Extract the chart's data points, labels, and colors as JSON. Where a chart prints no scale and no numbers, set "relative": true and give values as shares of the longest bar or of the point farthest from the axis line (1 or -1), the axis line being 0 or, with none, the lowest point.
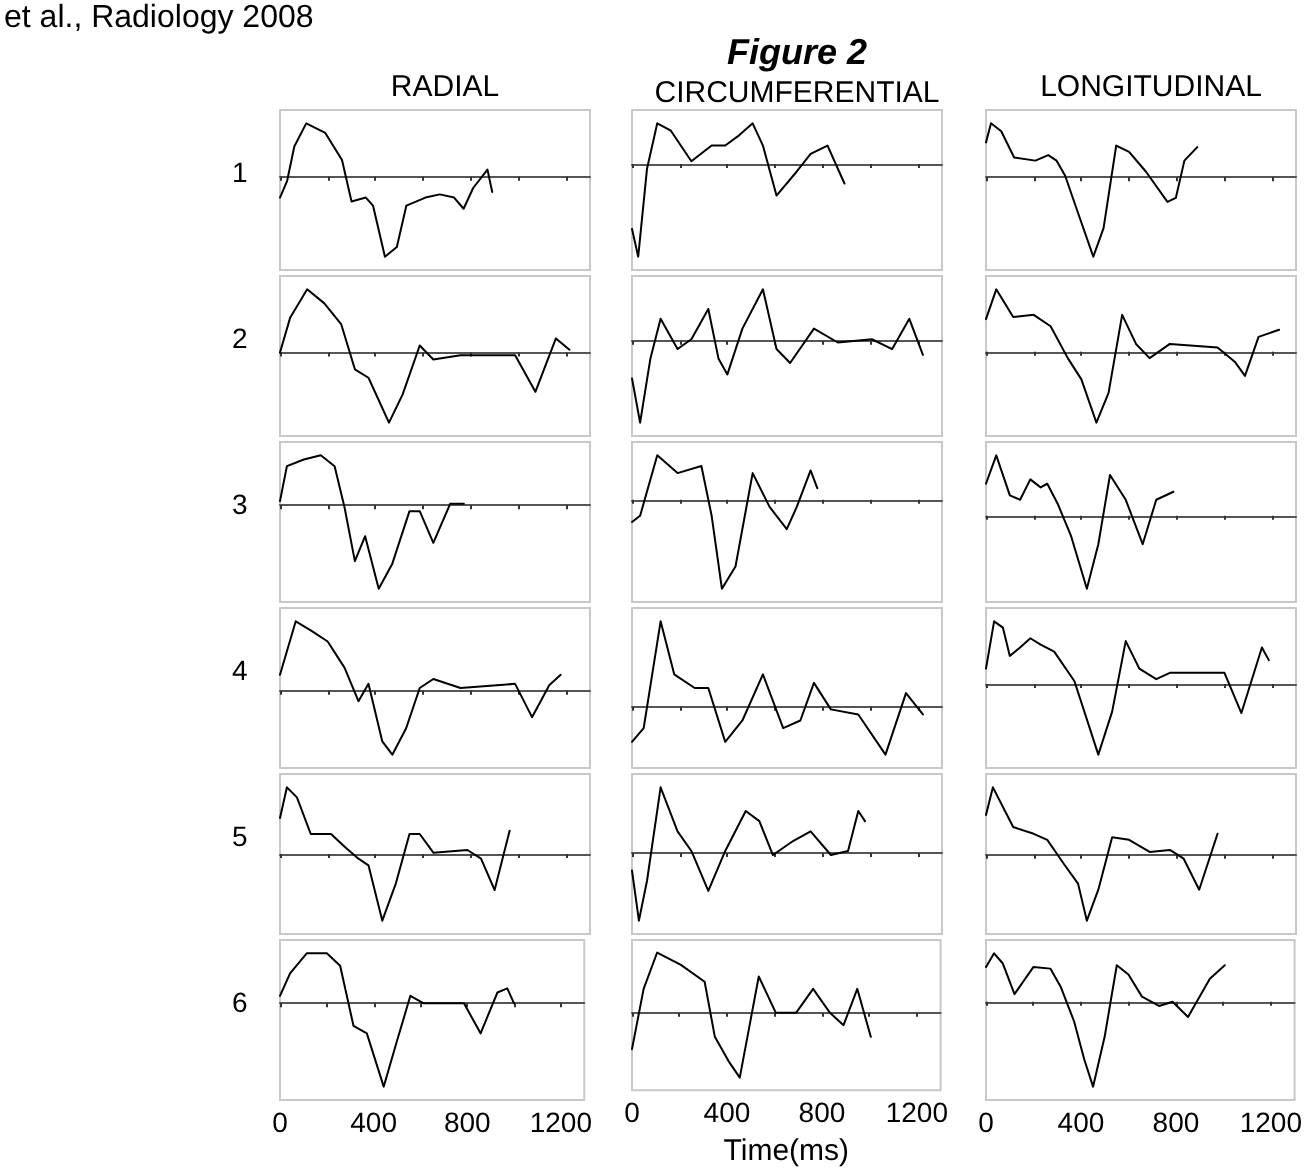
{
  "chart_data": [
    {
      "type": "line",
      "relative": true,
      "title": "RADIAL",
      "ylabel": "1",
      "annotations": [
        "et al., Radiology 2008"
      ],
      "xlim": [
        0,
        1300
      ],
      "xticks": [
        0,
        {
          "value": 200,
          "label": null
        },
        400,
        {
          "value": 600,
          "label": null
        },
        800,
        {
          "value": 1000,
          "label": null
        },
        1200
      ],
      "tick_labels": false,
      "x": [
        0,
        30,
        60,
        110,
        190,
        260,
        300,
        360,
        390,
        440,
        490,
        530,
        610,
        670,
        730,
        770,
        810,
        870,
        890
      ],
      "series": [
        {
          "color": "#000000",
          "values": [
            -0.26,
            -0.05,
            0.38,
            0.67,
            0.55,
            0.21,
            -0.31,
            -0.26,
            -0.36,
            -1,
            -0.88,
            -0.36,
            -0.26,
            -0.22,
            -0.26,
            -0.4,
            -0.14,
            0.09,
            -0.19
          ]
        }
      ]
    },
    {
      "type": "line",
      "relative": true,
      "title": "Figure 2",
      "subtitle": "CIRCUMFERENTIAL",
      "xlim": [
        0,
        1300
      ],
      "xticks": [
        0,
        {
          "value": 200,
          "label": null
        },
        400,
        {
          "value": 600,
          "label": null
        },
        800,
        {
          "value": 1000,
          "label": null
        },
        1200
      ],
      "tick_labels": false,
      "x": [
        0,
        26,
        63,
        106,
        163,
        249,
        334,
        391,
        449,
        506,
        549,
        606,
        691,
        749,
        820,
        891
      ],
      "series": [
        {
          "color": "#000000",
          "values": [
            -0.7,
            -1,
            -0.05,
            0.44,
            0.36,
            0.03,
            0.2,
            0.2,
            0.31,
            0.44,
            0.2,
            -0.34,
            -0.08,
            0.11,
            0.2,
            -0.21
          ]
        }
      ]
    },
    {
      "type": "line",
      "relative": true,
      "title": "LONGITUDINAL",
      "xlim": [
        0,
        1300
      ],
      "xticks": [
        0,
        {
          "value": 200,
          "label": null
        },
        400,
        {
          "value": 600,
          "label": null
        },
        800,
        {
          "value": 1000,
          "label": null
        },
        1200
      ],
      "tick_labels": false,
      "x": [
        0,
        21,
        64,
        118,
        207,
        261,
        296,
        332,
        386,
        450,
        493,
        546,
        600,
        671,
        761,
        796,
        832,
        886
      ],
      "series": [
        {
          "color": "#000000",
          "values": [
            0.44,
            0.68,
            0.58,
            0.25,
            0.21,
            0.28,
            0.21,
            0.02,
            -0.45,
            -1,
            -0.64,
            0.4,
            0.32,
            0.07,
            -0.31,
            -0.26,
            0.21,
            0.38
          ]
        }
      ]
    },
    {
      "type": "line",
      "relative": true,
      "ylabel": "2",
      "xlim": [
        0,
        1300
      ],
      "xticks": [
        0,
        {
          "value": 200,
          "label": null
        },
        400,
        {
          "value": 600,
          "label": null
        },
        800,
        {
          "value": 1000,
          "label": null
        },
        1200
      ],
      "tick_labels": false,
      "x": [
        0,
        43,
        114,
        186,
        257,
        314,
        371,
        457,
        514,
        586,
        643,
        757,
        986,
        1071,
        1157,
        1214
      ],
      "series": [
        {
          "color": "#000000",
          "values": [
            0,
            0.5,
            0.9,
            0.7,
            0.4,
            -0.24,
            -0.36,
            -1,
            -0.6,
            0.1,
            -0.1,
            -0.04,
            -0.04,
            -0.56,
            0.2,
            0.04
          ]
        }
      ]
    },
    {
      "type": "line",
      "relative": true,
      "xlim": [
        0,
        1300
      ],
      "xticks": [
        0,
        {
          "value": 200,
          "label": null
        },
        400,
        {
          "value": 600,
          "label": null
        },
        800,
        {
          "value": 1000,
          "label": null
        },
        1200
      ],
      "tick_labels": false,
      "x": [
        0,
        34,
        77,
        120,
        191,
        249,
        320,
        363,
        400,
        463,
        549,
        606,
        663,
        763,
        863,
        1006,
        1091,
        1163,
        1220
      ],
      "series": [
        {
          "color": "#000000",
          "values": [
            -0.46,
            -1,
            -0.22,
            0.27,
            -0.1,
            0.02,
            0.39,
            -0.22,
            -0.41,
            0.15,
            0.63,
            -0.1,
            -0.27,
            0.15,
            -0.02,
            0.02,
            -0.1,
            0.27,
            -0.17
          ]
        }
      ]
    },
    {
      "type": "line",
      "relative": true,
      "xlim": [
        0,
        1300
      ],
      "xticks": [
        0,
        {
          "value": 200,
          "label": null
        },
        400,
        {
          "value": 600,
          "label": null
        },
        800,
        {
          "value": 1000,
          "label": null
        },
        1200
      ],
      "tick_labels": false,
      "x": [
        0,
        43,
        114,
        200,
        271,
        343,
        400,
        463,
        514,
        571,
        629,
        686,
        771,
        971,
        1043,
        1086,
        1143,
        1229
      ],
      "series": [
        {
          "color": "#000000",
          "values": [
            0.46,
            0.88,
            0.49,
            0.52,
            0.36,
            -0.09,
            -0.39,
            -1,
            -0.58,
            0.52,
            0.11,
            -0.09,
            0.11,
            0.06,
            -0.14,
            -0.34,
            0.21,
            0.31
          ]
        }
      ]
    },
    {
      "type": "line",
      "relative": true,
      "ylabel": "3",
      "xlim": [
        0,
        1300
      ],
      "xticks": [
        0,
        {
          "value": 200,
          "label": null
        },
        400,
        {
          "value": 600,
          "label": null
        },
        800,
        {
          "value": 1000,
          "label": null
        },
        1200
      ],
      "tick_labels": false,
      "x": [
        0,
        29,
        100,
        171,
        229,
        271,
        314,
        357,
        414,
        471,
        543,
        586,
        643,
        714,
        771
      ],
      "series": [
        {
          "color": "#000000",
          "values": [
            0.05,
            0.47,
            0.55,
            0.6,
            0.47,
            -0.03,
            -0.67,
            -0.37,
            -1,
            -0.7,
            -0.07,
            -0.07,
            -0.45,
            0.02,
            0.02
          ]
        }
      ]
    },
    {
      "type": "line",
      "relative": true,
      "xlim": [
        0,
        1300
      ],
      "xticks": [
        0,
        {
          "value": 200,
          "label": null
        },
        400,
        {
          "value": 600,
          "label": null
        },
        800,
        {
          "value": 1000,
          "label": null
        },
        1200
      ],
      "tick_labels": false,
      "x": [
        0,
        34,
        106,
        191,
        291,
        334,
        377,
        434,
        506,
        577,
        649,
        691,
        749,
        777
      ],
      "series": [
        {
          "color": "#000000",
          "values": [
            -0.25,
            -0.18,
            0.5,
            0.3,
            0.38,
            -0.18,
            -1,
            -0.75,
            0.3,
            -0.08,
            -0.33,
            -0.08,
            0.33,
            0.13
          ]
        }
      ]
    },
    {
      "type": "line",
      "relative": true,
      "xlim": [
        0,
        1300
      ],
      "xticks": [
        0,
        {
          "value": 200,
          "label": null
        },
        400,
        {
          "value": 600,
          "label": null
        },
        800,
        {
          "value": 1000,
          "label": null
        },
        1200
      ],
      "tick_labels": false,
      "x": [
        0,
        43,
        100,
        143,
        186,
        229,
        257,
        300,
        357,
        423,
        471,
        520,
        586,
        657,
        714,
        786
      ],
      "series": [
        {
          "color": "#000000",
          "values": [
            0.44,
            0.83,
            0.28,
            0.22,
            0.5,
            0.39,
            0.44,
            0.17,
            -0.28,
            -1,
            -0.39,
            0.56,
            0.22,
            -0.39,
            0.22,
            0.33
          ]
        }
      ]
    },
    {
      "type": "line",
      "relative": true,
      "ylabel": "4",
      "xlim": [
        0,
        1300
      ],
      "xticks": [
        0,
        {
          "value": 200,
          "label": null
        },
        400,
        {
          "value": 600,
          "label": null
        },
        800,
        {
          "value": 1000,
          "label": null
        },
        1200
      ],
      "tick_labels": false,
      "x": [
        0,
        66,
        129,
        200,
        271,
        329,
        371,
        429,
        471,
        529,
        586,
        643,
        757,
        986,
        1057,
        1129,
        1177
      ],
      "series": [
        {
          "color": "#000000",
          "values": [
            0.23,
            1,
            0.87,
            0.71,
            0.33,
            -0.15,
            0.1,
            -0.73,
            -0.92,
            -0.54,
            0.04,
            0.17,
            0.04,
            0.1,
            -0.38,
            0.08,
            0.23
          ]
        }
      ]
    },
    {
      "type": "line",
      "relative": true,
      "xlim": [
        0,
        1300
      ],
      "xticks": [
        0,
        {
          "value": 200,
          "label": null
        },
        400,
        {
          "value": 600,
          "label": null
        },
        800,
        {
          "value": 1000,
          "label": null
        },
        1200
      ],
      "tick_labels": false,
      "x": [
        0,
        49,
        120,
        177,
        263,
        320,
        391,
        463,
        549,
        634,
        706,
        763,
        834,
        949,
        1063,
        1149,
        1220
      ],
      "series": [
        {
          "color": "#000000",
          "values": [
            -0.41,
            -0.25,
            1,
            0.38,
            0.22,
            0.22,
            -0.41,
            -0.16,
            0.38,
            -0.25,
            -0.16,
            0.28,
            -0.03,
            -0.09,
            -0.56,
            0.16,
            -0.09
          ]
        }
      ]
    },
    {
      "type": "line",
      "relative": true,
      "xlim": [
        0,
        1300
      ],
      "xticks": [
        0,
        {
          "value": 200,
          "label": null
        },
        400,
        {
          "value": 600,
          "label": null
        },
        800,
        {
          "value": 1000,
          "label": null
        },
        1200
      ],
      "tick_labels": false,
      "x": [
        0,
        34,
        71,
        100,
        143,
        186,
        229,
        286,
        371,
        471,
        529,
        586,
        643,
        714,
        771,
        1000,
        1071,
        1157,
        1186
      ],
      "series": [
        {
          "color": "#000000",
          "values": [
            0.22,
            0.89,
            0.8,
            0.4,
            0.52,
            0.65,
            0.56,
            0.46,
            0.04,
            -1,
            -0.39,
            0.61,
            0.22,
            0.07,
            0.16,
            0.16,
            -0.41,
            0.52,
            0.34
          ]
        }
      ]
    },
    {
      "type": "line",
      "relative": true,
      "ylabel": "5",
      "xlim": [
        0,
        1300
      ],
      "xticks": [
        0,
        {
          "value": 200,
          "label": null
        },
        400,
        {
          "value": 600,
          "label": null
        },
        800,
        {
          "value": 1000,
          "label": null
        },
        1200
      ],
      "tick_labels": false,
      "x": [
        0,
        29,
        71,
        129,
        214,
        271,
        329,
        371,
        429,
        486,
        543,
        586,
        643,
        786,
        843,
        900,
        963
      ],
      "series": [
        {
          "color": "#000000",
          "values": [
            0.54,
            1,
            0.85,
            0.3,
            0.3,
            0.11,
            -0.07,
            -0.17,
            -1,
            -0.44,
            0.3,
            0.3,
            0.02,
            0.06,
            -0.07,
            -0.54,
            0.35
          ]
        }
      ]
    },
    {
      "type": "line",
      "relative": true,
      "xlim": [
        0,
        1300
      ],
      "xticks": [
        0,
        {
          "value": 200,
          "label": null
        },
        400,
        {
          "value": 600,
          "label": null
        },
        800,
        {
          "value": 1000,
          "label": null
        },
        1200
      ],
      "tick_labels": false,
      "x": [
        0,
        29,
        63,
        120,
        191,
        249,
        320,
        391,
        477,
        534,
        591,
        677,
        749,
        834,
        906,
        949,
        977
      ],
      "series": [
        {
          "color": "#000000",
          "values": [
            -0.26,
            -1,
            -0.41,
            0.97,
            0.32,
            0.03,
            -0.56,
            0.03,
            0.62,
            0.47,
            -0.03,
            0.18,
            0.32,
            -0.03,
            0.03,
            0.62,
            0.47
          ]
        }
      ]
    },
    {
      "type": "line",
      "relative": true,
      "xlim": [
        0,
        1300
      ],
      "xticks": [
        0,
        {
          "value": 200,
          "label": null
        },
        400,
        {
          "value": 600,
          "label": null
        },
        800,
        {
          "value": 1000,
          "label": null
        },
        1200
      ],
      "tick_labels": false,
      "x": [
        0,
        29,
        114,
        200,
        257,
        329,
        386,
        423,
        471,
        529,
        600,
        686,
        771,
        829,
        894,
        971
      ],
      "series": [
        {
          "color": "#000000",
          "values": [
            0.59,
            1,
            0.41,
            0.31,
            0.22,
            -0.15,
            -0.43,
            -0.98,
            -0.52,
            0.26,
            0.22,
            0.04,
            0.07,
            -0.06,
            -0.52,
            0.31
          ]
        }
      ]
    },
    {
      "type": "line",
      "relative": true,
      "ylabel": "6",
      "xlim": [
        0,
        1300
      ],
      "xticks": [
        0,
        {
          "value": 200,
          "label": null
        },
        400,
        {
          "value": 600,
          "label": null
        },
        800,
        {
          "value": 1000,
          "label": null
        },
        1200
      ],
      "tick_labels": "x",
      "x": [
        0,
        43,
        114,
        200,
        257,
        314,
        371,
        443,
        500,
        557,
        614,
        786,
        857,
        929,
        971,
        1000
      ],
      "series": [
        {
          "color": "#000000",
          "values": [
            0.09,
            0.36,
            0.6,
            0.6,
            0.45,
            -0.27,
            -0.36,
            -1,
            -0.45,
            0.09,
            0,
            0,
            -0.36,
            0.13,
            0.18,
            0
          ]
        }
      ]
    },
    {
      "type": "line",
      "relative": true,
      "xlabel": "Time(ms)",
      "xlim": [
        0,
        1300
      ],
      "xticks": [
        0,
        {
          "value": 200,
          "label": null
        },
        400,
        {
          "value": 600,
          "label": null
        },
        800,
        {
          "value": 1000,
          "label": null
        },
        1200
      ],
      "tick_labels": "x",
      "x": [
        0,
        49,
        106,
        206,
        306,
        349,
        406,
        454,
        534,
        606,
        691,
        763,
        834,
        891,
        949,
        1006
      ],
      "series": [
        {
          "color": "#000000",
          "values": [
            -0.56,
            0.37,
            0.93,
            0.74,
            0.48,
            -0.37,
            -0.74,
            -1,
            0.56,
            0,
            0,
            0.37,
            0,
            -0.19,
            0.37,
            -0.37
          ]
        }
      ]
    },
    {
      "type": "line",
      "relative": true,
      "xlim": [
        0,
        1300
      ],
      "xticks": [
        0,
        {
          "value": 200,
          "label": null
        },
        400,
        {
          "value": 600,
          "label": null
        },
        800,
        {
          "value": 1000,
          "label": null
        },
        1200
      ],
      "tick_labels": "x",
      "x": [
        0,
        34,
        71,
        120,
        200,
        271,
        314,
        371,
        414,
        451,
        500,
        551,
        600,
        657,
        729,
        786,
        851,
        943,
        1006
      ],
      "series": [
        {
          "color": "#000000",
          "values": [
            0.41,
            0.57,
            0.45,
            0.09,
            0.41,
            0.39,
            0.18,
            -0.23,
            -0.68,
            -1,
            -0.41,
            0.43,
            0.32,
            0.06,
            -0.05,
            0,
            -0.18,
            0.27,
            0.43
          ]
        }
      ]
    }
  ]
}
